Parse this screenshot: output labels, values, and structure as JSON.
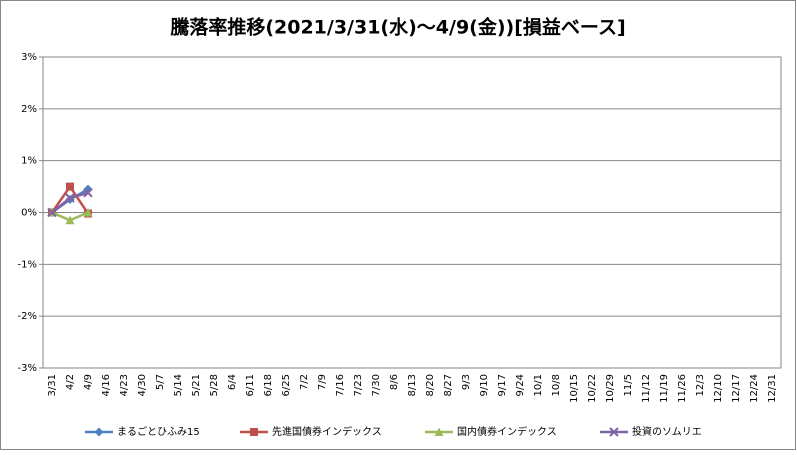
{
  "chart_data": {
    "type": "line",
    "title": "騰落率推移(2021/3/31(水)～4/9(金))[損益ベース]",
    "categories": [
      "3/31",
      "4/2",
      "4/9",
      "4/16",
      "4/23",
      "4/30",
      "5/7",
      "5/14",
      "5/21",
      "5/28",
      "6/4",
      "6/11",
      "6/18",
      "6/25",
      "7/2",
      "7/9",
      "7/16",
      "7/23",
      "7/30",
      "8/6",
      "8/13",
      "8/20",
      "8/27",
      "9/3",
      "9/10",
      "9/17",
      "9/24",
      "10/1",
      "10/8",
      "10/15",
      "10/22",
      "10/29",
      "11/5",
      "11/12",
      "11/19",
      "11/26",
      "12/3",
      "12/10",
      "12/17",
      "12/24",
      "12/31"
    ],
    "series": [
      {
        "name": "まるごとひふみ15",
        "color": "#4F81BD",
        "marker": "diamond",
        "values": [
          0,
          0.25,
          0.45,
          null,
          null,
          null,
          null,
          null,
          null,
          null,
          null,
          null,
          null,
          null,
          null,
          null,
          null,
          null,
          null,
          null,
          null,
          null,
          null,
          null,
          null,
          null,
          null,
          null,
          null,
          null,
          null,
          null,
          null,
          null,
          null,
          null,
          null,
          null,
          null,
          null,
          null
        ]
      },
      {
        "name": "先進国債券インデックス",
        "color": "#C0504D",
        "marker": "square",
        "values": [
          0,
          0.5,
          -0.02,
          null,
          null,
          null,
          null,
          null,
          null,
          null,
          null,
          null,
          null,
          null,
          null,
          null,
          null,
          null,
          null,
          null,
          null,
          null,
          null,
          null,
          null,
          null,
          null,
          null,
          null,
          null,
          null,
          null,
          null,
          null,
          null,
          null,
          null,
          null,
          null,
          null,
          null
        ]
      },
      {
        "name": "国内債券インデックス",
        "color": "#9BBB59",
        "marker": "triangle",
        "values": [
          0,
          -0.15,
          0,
          null,
          null,
          null,
          null,
          null,
          null,
          null,
          null,
          null,
          null,
          null,
          null,
          null,
          null,
          null,
          null,
          null,
          null,
          null,
          null,
          null,
          null,
          null,
          null,
          null,
          null,
          null,
          null,
          null,
          null,
          null,
          null,
          null,
          null,
          null,
          null,
          null,
          null
        ]
      },
      {
        "name": "投資のソムリエ",
        "color": "#8064A2",
        "marker": "x",
        "values": [
          0,
          0.28,
          0.38,
          null,
          null,
          null,
          null,
          null,
          null,
          null,
          null,
          null,
          null,
          null,
          null,
          null,
          null,
          null,
          null,
          null,
          null,
          null,
          null,
          null,
          null,
          null,
          null,
          null,
          null,
          null,
          null,
          null,
          null,
          null,
          null,
          null,
          null,
          null,
          null,
          null,
          null
        ]
      }
    ],
    "ylim": [
      -3,
      3
    ],
    "yticks": [
      {
        "value": -3,
        "label": "-3%"
      },
      {
        "value": -2,
        "label": "-2%"
      },
      {
        "value": -1,
        "label": "-1%"
      },
      {
        "value": 0,
        "label": "0%"
      },
      {
        "value": 1,
        "label": "1%"
      },
      {
        "value": 2,
        "label": "2%"
      },
      {
        "value": 3,
        "label": "3%"
      }
    ],
    "grid": true,
    "legend": "bottom"
  }
}
